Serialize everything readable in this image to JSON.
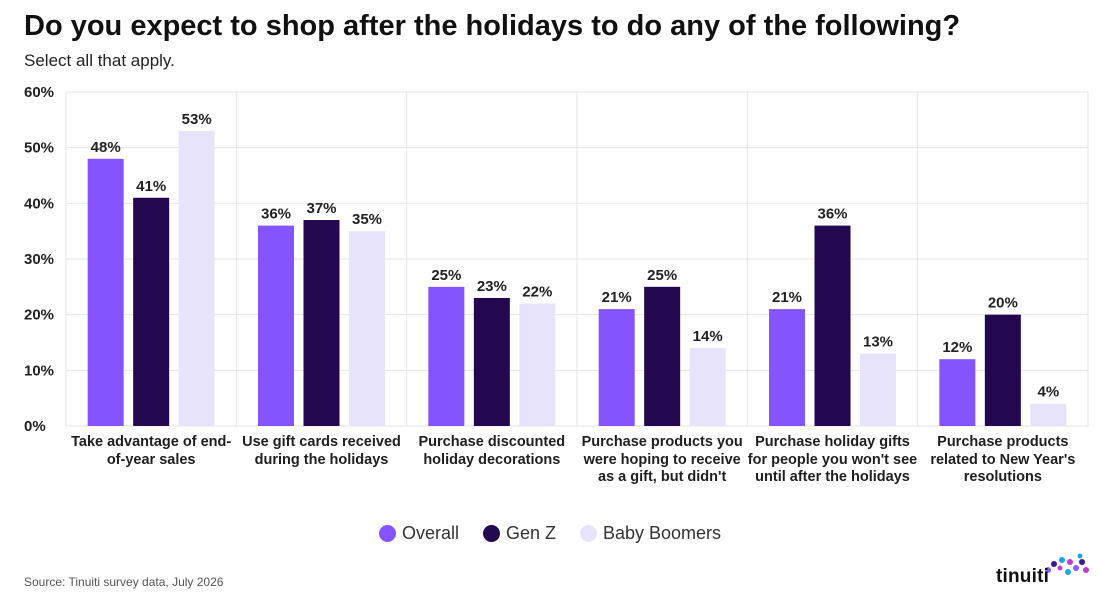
{
  "title": "Do you expect to shop after the holidays to do any of the following?",
  "subtitle": "Select all that apply.",
  "source": "Source: Tinuiti survey data, July 2026",
  "logo": {
    "text": "tinuiti",
    "icon": "tinuiti-dots-logo-icon",
    "colors": [
      "#8a5cff",
      "#3a1a8c",
      "#1aa6e8",
      "#c23bd8"
    ]
  },
  "colors": {
    "overall": "#8354ff",
    "genz": "#23074f",
    "boomers": "#e7e3fb",
    "grid": "#e6e6e6"
  },
  "chart_data": {
    "type": "bar",
    "categories": [
      "Take advantage of end-of-year sales",
      "Use gift cards received during the holidays",
      "Purchase discounted holiday decorations",
      "Purchase products you were hoping to receive as a gift, but didn't",
      "Purchase holiday gifts for people you won't see until after the holidays",
      "Purchase products related to New Year's resolutions"
    ],
    "series": [
      {
        "name": "Overall",
        "values": [
          48,
          36,
          25,
          21,
          21,
          12
        ],
        "color": "#8354ff"
      },
      {
        "name": "Gen Z",
        "values": [
          41,
          37,
          23,
          25,
          36,
          20
        ],
        "color": "#23074f"
      },
      {
        "name": "Baby Boomers",
        "values": [
          53,
          35,
          22,
          14,
          13,
          4
        ],
        "color": "#e7e3fb"
      }
    ],
    "value_suffix": "%",
    "ylim": [
      0,
      60
    ],
    "yticks": [
      0,
      10,
      20,
      30,
      40,
      50,
      60
    ],
    "ytick_labels": [
      "0%",
      "10%",
      "20%",
      "30%",
      "40%",
      "50%",
      "60%"
    ],
    "grid": true,
    "legend": "bottom-center"
  }
}
